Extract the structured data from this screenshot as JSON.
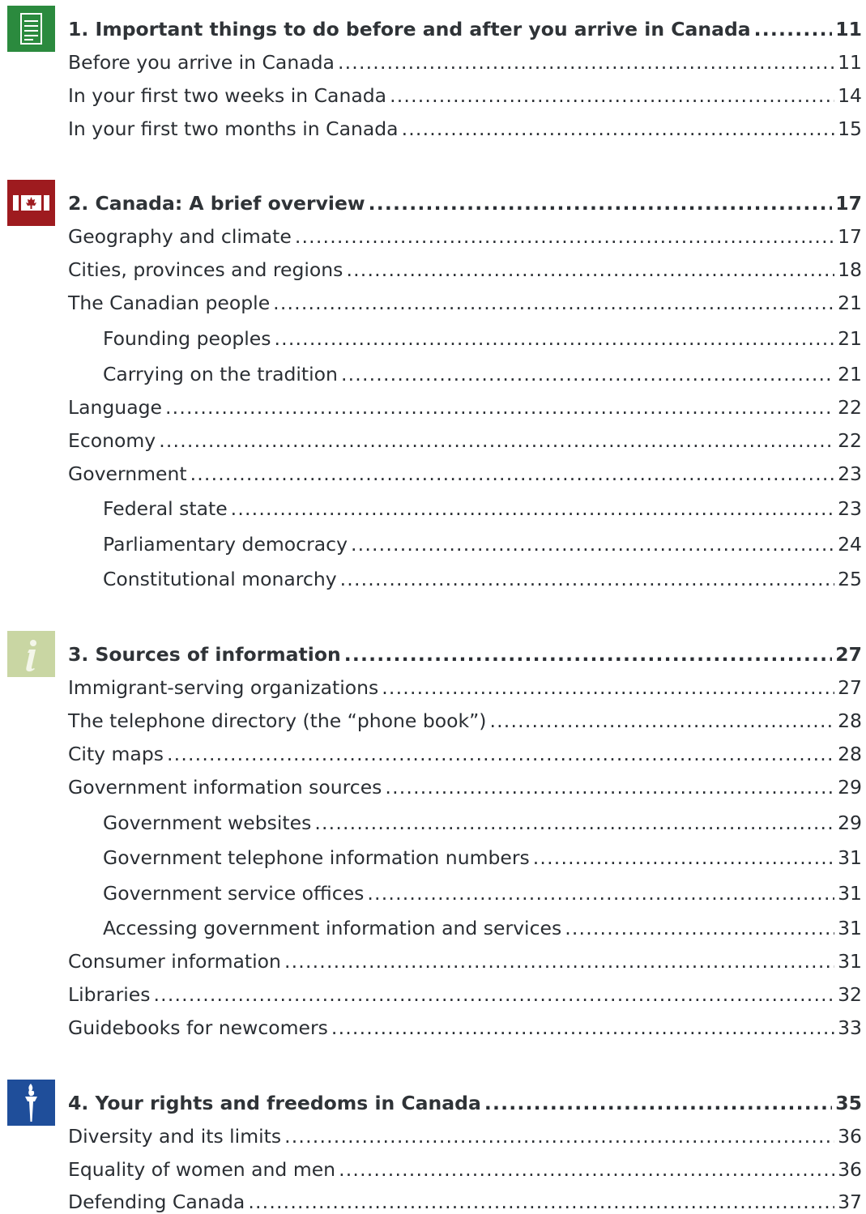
{
  "toc": {
    "sections": [
      {
        "icon": "document-icon",
        "icon_bg": "#2b8a3e",
        "heading": {
          "title": "1. Important things to do before and after you arrive in Canada",
          "page": "11"
        },
        "entries": [
          {
            "title": "Before you arrive in Canada",
            "page": "11",
            "level": 1
          },
          {
            "title": "In your first two weeks in Canada",
            "page": "14",
            "level": 1
          },
          {
            "title": "In your first two months in Canada",
            "page": "15",
            "level": 1
          }
        ]
      },
      {
        "icon": "canada-flag-icon",
        "icon_bg": "#9e1b1f",
        "heading": {
          "title": "2. Canada: A brief overview",
          "page": "17"
        },
        "entries": [
          {
            "title": "Geography and climate",
            "page": "17",
            "level": 1
          },
          {
            "title": "Cities, provinces and regions",
            "page": "18",
            "level": 1
          },
          {
            "title": "The Canadian people",
            "page": "21",
            "level": 1
          },
          {
            "title": "Founding peoples",
            "page": "21",
            "level": 2
          },
          {
            "title": "Carrying on the tradition",
            "page": "21",
            "level": 2
          },
          {
            "title": "Language",
            "page": "22",
            "level": 1
          },
          {
            "title": "Economy",
            "page": "22",
            "level": 1
          },
          {
            "title": "Government",
            "page": "23",
            "level": 1
          },
          {
            "title": "Federal state",
            "page": "23",
            "level": 2
          },
          {
            "title": "Parliamentary democracy",
            "page": "24",
            "level": 2
          },
          {
            "title": "Constitutional monarchy",
            "page": "25",
            "level": 2
          }
        ]
      },
      {
        "icon": "information-icon",
        "icon_bg": "#c9d6a3",
        "heading": {
          "title": "3. Sources of information",
          "page": "27"
        },
        "entries": [
          {
            "title": "Immigrant-serving organizations",
            "page": "27",
            "level": 1
          },
          {
            "title": "The telephone directory (the “phone book”)",
            "page": "28",
            "level": 1
          },
          {
            "title": "City maps",
            "page": "28",
            "level": 1
          },
          {
            "title": "Government information sources",
            "page": "29",
            "level": 1
          },
          {
            "title": "Government websites",
            "page": "29",
            "level": 2
          },
          {
            "title": "Government telephone information numbers",
            "page": "31",
            "level": 2
          },
          {
            "title": "Government service offices",
            "page": "31",
            "level": 2
          },
          {
            "title": "Accessing government information and services",
            "page": "31",
            "level": 2
          },
          {
            "title": "Consumer information",
            "page": "31",
            "level": 1
          },
          {
            "title": "Libraries",
            "page": "32",
            "level": 1
          },
          {
            "title": "Guidebooks for newcomers",
            "page": "33",
            "level": 1
          }
        ]
      },
      {
        "icon": "torch-icon",
        "icon_bg": "#1f4e9a",
        "heading": {
          "title": "4. Your rights and freedoms in Canada",
          "page": "35"
        },
        "entries": [
          {
            "title": "Diversity and its limits",
            "page": "36",
            "level": 1
          },
          {
            "title": "Equality of women and men",
            "page": "36",
            "level": 1
          },
          {
            "title": "Defending Canada",
            "page": "37",
            "level": 1
          }
        ]
      }
    ]
  }
}
